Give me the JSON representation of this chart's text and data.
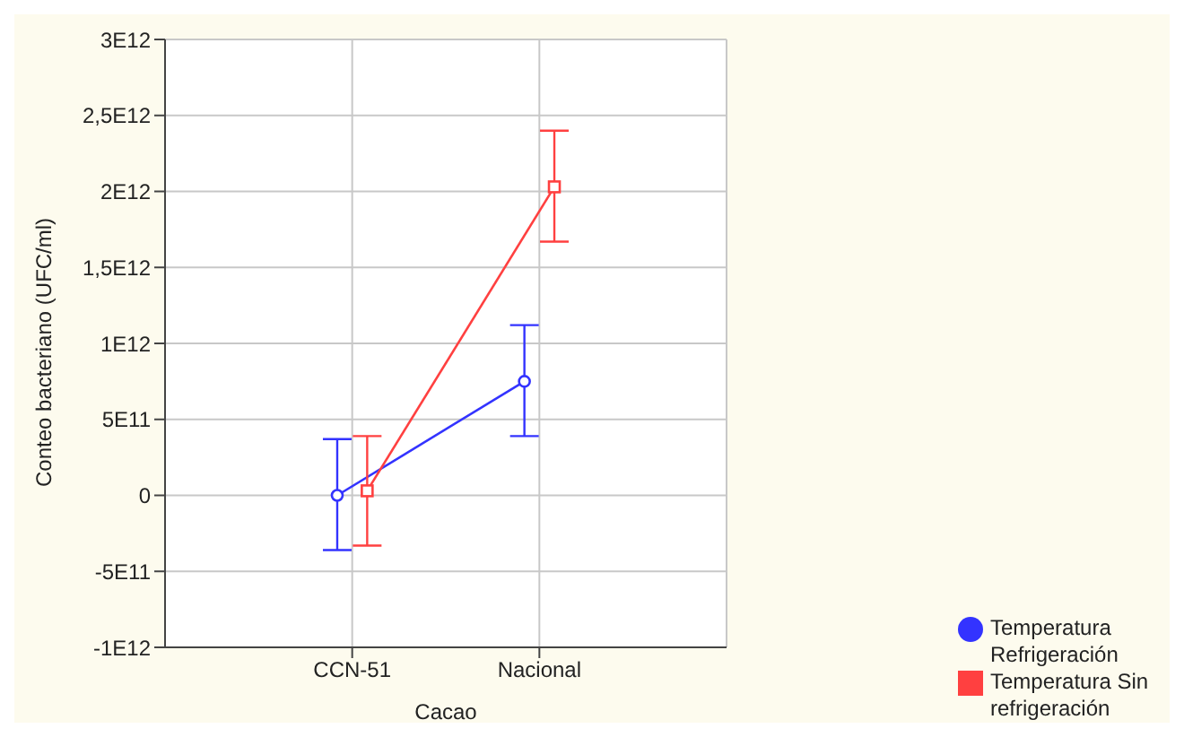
{
  "chart_data": {
    "type": "line",
    "xlabel": "Cacao",
    "ylabel": "Conteo bacteriano (UFC/ml)",
    "categories": [
      "CCN-51",
      "Nacional"
    ],
    "series": [
      {
        "name": "Temperatura Refrigeración",
        "color": "#3333ff",
        "marker": "circle",
        "values": [
          0,
          750000000000
        ],
        "errors": [
          [
            -360000000000,
            370000000000
          ],
          [
            390000000000,
            1120000000000
          ]
        ]
      },
      {
        "name": "Temperatura Sin refrigeración",
        "color": "#ff4040",
        "marker": "square",
        "values": [
          30000000000,
          2030000000000
        ],
        "errors": [
          [
            -330000000000,
            390000000000
          ],
          [
            1670000000000,
            2400000000000
          ]
        ]
      }
    ],
    "ylim": [
      -1000000000000,
      3000000000000
    ],
    "yticks": [
      {
        "value": -1000000000000,
        "label": "-1E12"
      },
      {
        "value": -500000000000,
        "label": "-5E11"
      },
      0,
      {
        "value": 500000000000,
        "label": "5E11"
      },
      {
        "value": 1000000000000,
        "label": "1E12"
      },
      {
        "value": 1500000000000,
        "label": "1,5E12"
      },
      {
        "value": 2000000000000,
        "label": "2E12"
      },
      {
        "value": 2500000000000,
        "label": "2,5E12"
      },
      {
        "value": 3000000000000,
        "label": "3E12"
      }
    ],
    "grid": true,
    "legend": "bottom right"
  }
}
